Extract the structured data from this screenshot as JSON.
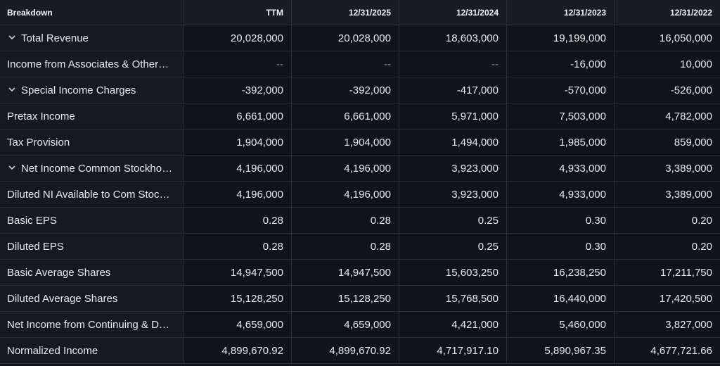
{
  "columns": [
    "Breakdown",
    "TTM",
    "12/31/2025",
    "12/31/2024",
    "12/31/2023",
    "12/31/2022"
  ],
  "icons": {
    "expand": "chevron-down-icon"
  },
  "rows": [
    {
      "label": "Total Revenue",
      "expandable": true,
      "values": [
        "20,028,000",
        "20,028,000",
        "18,603,000",
        "19,199,000",
        "16,050,000"
      ]
    },
    {
      "label": "Income from Associates & Other…",
      "expandable": false,
      "values": [
        "--",
        "--",
        "--",
        "-16,000",
        "10,000"
      ]
    },
    {
      "label": "Special Income Charges",
      "expandable": true,
      "values": [
        "-392,000",
        "-392,000",
        "-417,000",
        "-570,000",
        "-526,000"
      ]
    },
    {
      "label": "Pretax Income",
      "expandable": false,
      "values": [
        "6,661,000",
        "6,661,000",
        "5,971,000",
        "7,503,000",
        "4,782,000"
      ]
    },
    {
      "label": "Tax Provision",
      "expandable": false,
      "values": [
        "1,904,000",
        "1,904,000",
        "1,494,000",
        "1,985,000",
        "859,000"
      ]
    },
    {
      "label": "Net Income Common Stockho…",
      "expandable": true,
      "values": [
        "4,196,000",
        "4,196,000",
        "3,923,000",
        "4,933,000",
        "3,389,000"
      ]
    },
    {
      "label": "Diluted NI Available to Com Stoc…",
      "expandable": false,
      "values": [
        "4,196,000",
        "4,196,000",
        "3,923,000",
        "4,933,000",
        "3,389,000"
      ]
    },
    {
      "label": "Basic EPS",
      "expandable": false,
      "values": [
        "0.28",
        "0.28",
        "0.25",
        "0.30",
        "0.20"
      ]
    },
    {
      "label": "Diluted EPS",
      "expandable": false,
      "values": [
        "0.28",
        "0.28",
        "0.25",
        "0.30",
        "0.20"
      ]
    },
    {
      "label": "Basic Average Shares",
      "expandable": false,
      "values": [
        "14,947,500",
        "14,947,500",
        "15,603,250",
        "16,238,250",
        "17,211,750"
      ]
    },
    {
      "label": "Diluted Average Shares",
      "expandable": false,
      "values": [
        "15,128,250",
        "15,128,250",
        "15,768,500",
        "16,440,000",
        "17,420,500"
      ]
    },
    {
      "label": "Net Income from Continuing & D…",
      "expandable": false,
      "values": [
        "4,659,000",
        "4,659,000",
        "4,421,000",
        "5,460,000",
        "3,827,000"
      ]
    },
    {
      "label": "Normalized Income",
      "expandable": false,
      "values": [
        "4,899,670.92",
        "4,899,670.92",
        "4,717,917.10",
        "5,890,967.35",
        "4,677,721.66"
      ]
    }
  ]
}
